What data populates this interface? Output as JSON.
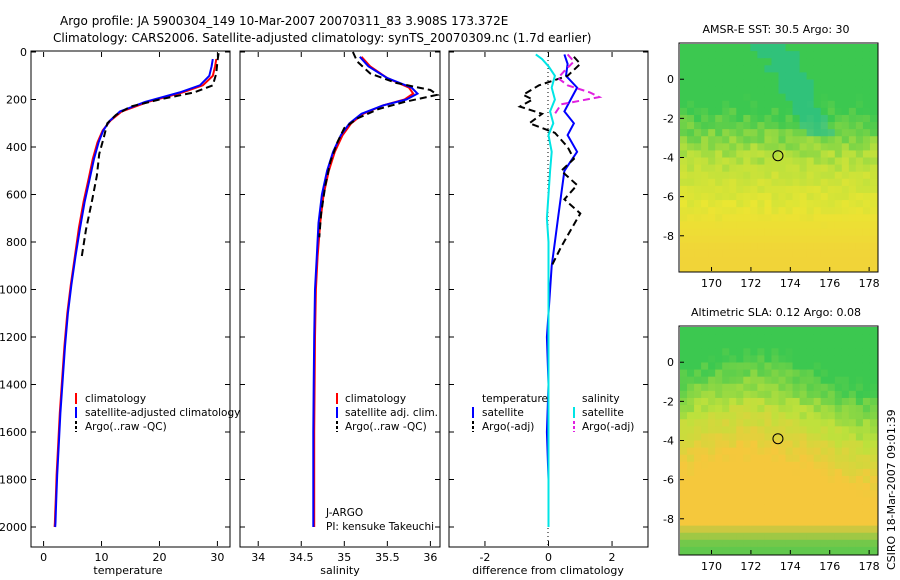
{
  "title_line1": "Argo profile: JA 5900304_149 10-Mar-2007 20070311_83 3.908S 173.372E",
  "title_line2": "Climatology: CARS2006. Satellite-adjusted climatology: synTS_20070309.nc (1.7d earlier)",
  "side_stamp": "CSIRO 18-Mar-2007 09:01:39",
  "chart_data": [
    {
      "type": "line",
      "id": "temperature",
      "xlabel": "temperature",
      "ylabel": "",
      "xlim": [
        -2,
        32
      ],
      "ylim": [
        2080,
        0
      ],
      "x_ticks": [
        "0",
        "10",
        "20",
        "30"
      ],
      "y_ticks": [
        "0",
        "200",
        "400",
        "600",
        "800",
        "1000",
        "1200",
        "1400",
        "1600",
        "1800",
        "2000"
      ],
      "legend": [
        "climatology",
        "satellite-adjusted climatology",
        "Argo(..raw -QC)"
      ],
      "series": [
        {
          "name": "climatology",
          "color": "#ff0000",
          "style": "solid",
          "x": [
            29.8,
            29.6,
            29.2,
            27.5,
            24,
            18,
            13.5,
            11.5,
            10.2,
            9.3,
            8.5,
            7.8,
            6.9,
            6.1,
            5.4,
            4.7,
            4.1,
            3.6,
            3.2,
            2.8,
            2.5,
            2.25,
            2.1,
            2.0,
            1.95,
            1.9
          ],
          "y": [
            30,
            60,
            100,
            140,
            170,
            210,
            250,
            290,
            330,
            380,
            450,
            530,
            630,
            740,
            860,
            980,
            1100,
            1240,
            1380,
            1520,
            1660,
            1780,
            1880,
            1940,
            1980,
            2000
          ]
        },
        {
          "name": "satellite-adjusted climatology",
          "color": "#0000ff",
          "style": "solid",
          "x": [
            29.2,
            29.0,
            28.6,
            27,
            23.5,
            17.5,
            13.2,
            11.4,
            10.3,
            9.5,
            8.7,
            8.0,
            7.1,
            6.3,
            5.5,
            4.8,
            4.2,
            3.7,
            3.3,
            2.9,
            2.6,
            2.35,
            2.2,
            2.1,
            2.05,
            2.0
          ],
          "y": [
            30,
            60,
            100,
            140,
            170,
            210,
            250,
            290,
            330,
            380,
            450,
            530,
            630,
            740,
            860,
            980,
            1100,
            1240,
            1380,
            1520,
            1660,
            1780,
            1880,
            1940,
            1980,
            2000
          ]
        },
        {
          "name": "Argo(..raw -QC)",
          "color": "#000000",
          "style": "dashed",
          "x": [
            30.2,
            30.0,
            29.8,
            29.2,
            26,
            20,
            15,
            12.5,
            11.0,
            10.4,
            9.6,
            9.2,
            8.4,
            7.3,
            6.6
          ],
          "y": [
            5,
            40,
            90,
            140,
            170,
            200,
            230,
            265,
            300,
            360,
            430,
            520,
            620,
            750,
            860
          ]
        }
      ]
    },
    {
      "type": "line",
      "id": "salinity",
      "xlabel": "salinity",
      "xlim": [
        33.8,
        36.1
      ],
      "ylim": [
        2080,
        0
      ],
      "x_ticks": [
        "34",
        "34.5",
        "35",
        "35.5",
        "36"
      ],
      "legend": [
        "climatology",
        "satellite adj. clim.",
        "Argo(..raw -QC)"
      ],
      "annotation": [
        "J-ARGO",
        "PI: kensuke Takeuchi"
      ],
      "series": [
        {
          "name": "climatology",
          "color": "#ff0000",
          "style": "solid",
          "x": [
            35.2,
            35.3,
            35.5,
            35.75,
            35.8,
            35.7,
            35.45,
            35.22,
            35.08,
            34.98,
            34.89,
            34.82,
            34.76,
            34.72,
            34.69,
            34.67,
            34.66,
            34.655,
            34.65,
            34.65,
            34.65
          ],
          "y": [
            20,
            60,
            110,
            150,
            175,
            200,
            225,
            260,
            300,
            350,
            420,
            500,
            600,
            720,
            860,
            1000,
            1200,
            1400,
            1600,
            1800,
            2000
          ]
        },
        {
          "name": "satellite adj. clim.",
          "color": "#0000ff",
          "style": "solid",
          "x": [
            35.18,
            35.28,
            35.5,
            35.78,
            35.85,
            35.72,
            35.45,
            35.2,
            35.06,
            34.96,
            34.87,
            34.8,
            34.74,
            34.7,
            34.68,
            34.66,
            34.65,
            34.645,
            34.64,
            34.64,
            34.64
          ],
          "y": [
            20,
            60,
            110,
            150,
            175,
            200,
            225,
            260,
            300,
            350,
            420,
            500,
            600,
            720,
            860,
            1000,
            1200,
            1400,
            1600,
            1800,
            2000
          ]
        },
        {
          "name": "Argo(..raw -QC)",
          "color": "#000000",
          "style": "dashed",
          "x": [
            35.1,
            35.15,
            35.3,
            35.6,
            36.0,
            36.08,
            35.7,
            35.4,
            35.15,
            35.0,
            34.92,
            34.84,
            34.78,
            34.73,
            34.71
          ],
          "y": [
            0,
            40,
            90,
            130,
            160,
            180,
            210,
            240,
            280,
            320,
            380,
            460,
            560,
            680,
            780
          ]
        }
      ]
    },
    {
      "type": "line",
      "id": "difference",
      "xlabel": "difference from climatology",
      "xlim": [
        -3.1,
        3.1
      ],
      "ylim": [
        2080,
        0
      ],
      "x_ticks": [
        "-2",
        "0",
        "2"
      ],
      "legend_left_title": "temperature",
      "legend_left": [
        "satellite",
        "Argo(-adj)"
      ],
      "legend_right_title": "salinity",
      "legend_right": [
        "satellite",
        "Argo(-adj)"
      ],
      "series": [
        {
          "name": "temperature satellite",
          "color": "#0000ff",
          "style": "solid",
          "x": [
            0.5,
            0.6,
            0.55,
            0.9,
            0.7,
            0.5,
            0.8,
            0.6,
            0.9,
            0.5,
            0.4,
            0.3,
            0.2,
            0.1,
            0.05,
            -0.05,
            0.0,
            -0.05,
            0.0,
            0.0
          ],
          "y": [
            10,
            50,
            100,
            150,
            200,
            250,
            300,
            350,
            420,
            500,
            600,
            700,
            800,
            900,
            1000,
            1200,
            1400,
            1600,
            1800,
            2000
          ]
        },
        {
          "name": "temperature Argo(-adj)",
          "color": "#000000",
          "style": "dashed",
          "x": [
            0.8,
            1.0,
            0.6,
            -0.3,
            -0.8,
            -0.5,
            -0.9,
            -0.2,
            -0.6,
            0.2,
            0.6,
            0.8,
            0.4,
            0.9,
            0.5,
            1.0,
            0.7,
            0.4,
            0.1
          ],
          "y": [
            20,
            50,
            100,
            140,
            180,
            200,
            230,
            260,
            300,
            340,
            400,
            450,
            500,
            560,
            620,
            680,
            750,
            820,
            900
          ]
        },
        {
          "name": "salinity satellite",
          "color": "#00e5e5",
          "style": "solid",
          "x": [
            -0.4,
            -0.2,
            0.0,
            0.2,
            0.1,
            0.2,
            0.05,
            0.15,
            0.0,
            0.1,
            0.05,
            0.0,
            -0.05,
            0.0,
            0.0,
            0.0,
            0.0,
            0.0,
            0.0,
            0.0
          ],
          "y": [
            10,
            30,
            60,
            100,
            150,
            200,
            250,
            300,
            350,
            420,
            500,
            600,
            700,
            800,
            900,
            1000,
            1200,
            1400,
            1700,
            2000
          ]
        },
        {
          "name": "salinity Argo(-adj)",
          "color": "#e020e0",
          "style": "dashed",
          "x": [
            0.6,
            0.8,
            0.5,
            0.3,
            0.6,
            1.3,
            1.6,
            0.4,
            0.2
          ],
          "y": [
            10,
            40,
            80,
            110,
            140,
            170,
            190,
            220,
            260
          ]
        }
      ]
    },
    {
      "type": "heatmap",
      "id": "amsr-e-sst",
      "title": "AMSR-E SST: 30.5  Argo: 30",
      "xlim": [
        168.4,
        178.4
      ],
      "ylim": [
        -9.8,
        1.8
      ],
      "x_ticks": [
        "170",
        "172",
        "174",
        "176",
        "178"
      ],
      "y_ticks": [
        "0",
        "-2",
        "-4",
        "-6",
        "-8"
      ],
      "marker": {
        "lon": 173.372,
        "lat": -3.908
      }
    },
    {
      "type": "heatmap",
      "id": "altimetric-sla",
      "title": "Altimetric SLA: 0.12  Argo: 0.08",
      "xlim": [
        168.4,
        178.4
      ],
      "ylim": [
        -9.8,
        1.8
      ],
      "x_ticks": [
        "170",
        "172",
        "174",
        "176",
        "178"
      ],
      "y_ticks": [
        "0",
        "-2",
        "-4",
        "-6",
        "-8"
      ],
      "marker": {
        "lon": 173.372,
        "lat": -3.908
      }
    }
  ]
}
